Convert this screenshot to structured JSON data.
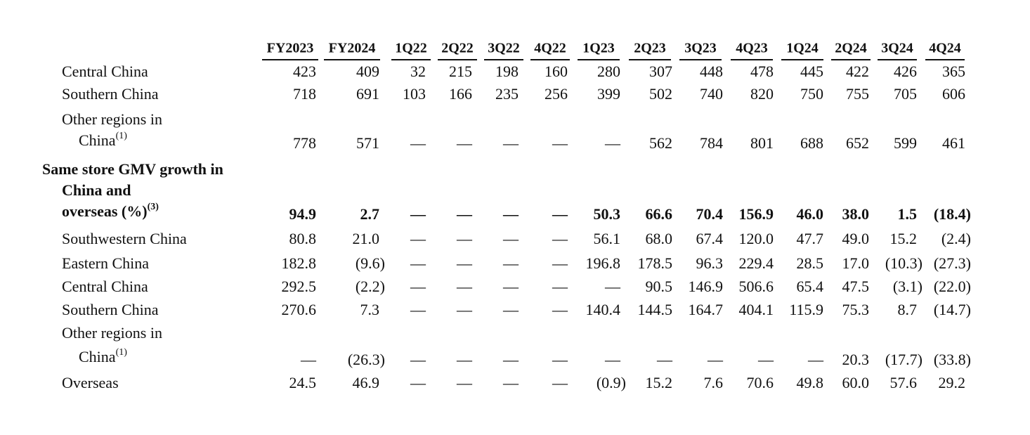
{
  "table": {
    "header": [
      "FY2023",
      "FY2024",
      "1Q22",
      "2Q22",
      "3Q22",
      "4Q22",
      "1Q23",
      "2Q23",
      "3Q23",
      "4Q23",
      "1Q24",
      "2Q24",
      "3Q24",
      "4Q24"
    ],
    "rows": [
      {
        "lines": [
          "Central China"
        ],
        "cells": [
          "423",
          "409",
          "32",
          "215",
          "198",
          "160",
          "280",
          "307",
          "448",
          "478",
          "445",
          "422",
          "426",
          "365"
        ]
      },
      {
        "lines": [
          "Southern China"
        ],
        "cells": [
          "718",
          "691",
          "103",
          "166",
          "235",
          "256",
          "399",
          "502",
          "740",
          "820",
          "750",
          "755",
          "705",
          "606"
        ]
      },
      {
        "lines": [
          "Other regions in",
          "China"
        ],
        "note": "(1)",
        "cells": [
          "778",
          "571",
          "—",
          "—",
          "—",
          "—",
          "—",
          "562",
          "784",
          "801",
          "688",
          "652",
          "599",
          "461"
        ]
      },
      {
        "lines": [
          "Same store GMV growth in",
          "China and",
          "overseas (%)"
        ],
        "note": "(3)",
        "bold": true,
        "cells": [
          "94.9",
          "2.7",
          "—",
          "—",
          "—",
          "—",
          "50.3",
          "66.6",
          "70.4",
          "156.9",
          "46.0",
          "38.0",
          "1.5",
          "(18.4)"
        ]
      },
      {
        "lines": [
          "Southwestern China"
        ],
        "cells": [
          "80.8",
          "21.0",
          "—",
          "—",
          "—",
          "—",
          "56.1",
          "68.0",
          "67.4",
          "120.0",
          "47.7",
          "49.0",
          "15.2",
          "(2.4)"
        ]
      },
      {
        "lines": [
          "Eastern China"
        ],
        "cells": [
          "182.8",
          "(9.6)",
          "—",
          "—",
          "—",
          "—",
          "196.8",
          "178.5",
          "96.3",
          "229.4",
          "28.5",
          "17.0",
          "(10.3)",
          "(27.3)"
        ]
      },
      {
        "lines": [
          "Central China"
        ],
        "cells": [
          "292.5",
          "(2.2)",
          "—",
          "—",
          "—",
          "—",
          "—",
          "90.5",
          "146.9",
          "506.6",
          "65.4",
          "47.5",
          "(3.1)",
          "(22.0)"
        ]
      },
      {
        "lines": [
          "Southern China"
        ],
        "cells": [
          "270.6",
          "7.3",
          "—",
          "—",
          "—",
          "—",
          "140.4",
          "144.5",
          "164.7",
          "404.1",
          "115.9",
          "75.3",
          "8.7",
          "(14.7)"
        ]
      },
      {
        "lines": [
          "Other regions in",
          "China"
        ],
        "note": "(1)",
        "cells": [
          "—",
          "(26.3)",
          "—",
          "—",
          "—",
          "—",
          "—",
          "—",
          "—",
          "—",
          "—",
          "20.3",
          "(17.7)",
          "(33.8)"
        ]
      },
      {
        "lines": [
          "Overseas"
        ],
        "cells": [
          "24.5",
          "46.9",
          "—",
          "—",
          "—",
          "—",
          "(0.9)",
          "15.2",
          "7.6",
          "70.6",
          "49.8",
          "60.0",
          "57.6",
          "29.2"
        ]
      }
    ]
  }
}
